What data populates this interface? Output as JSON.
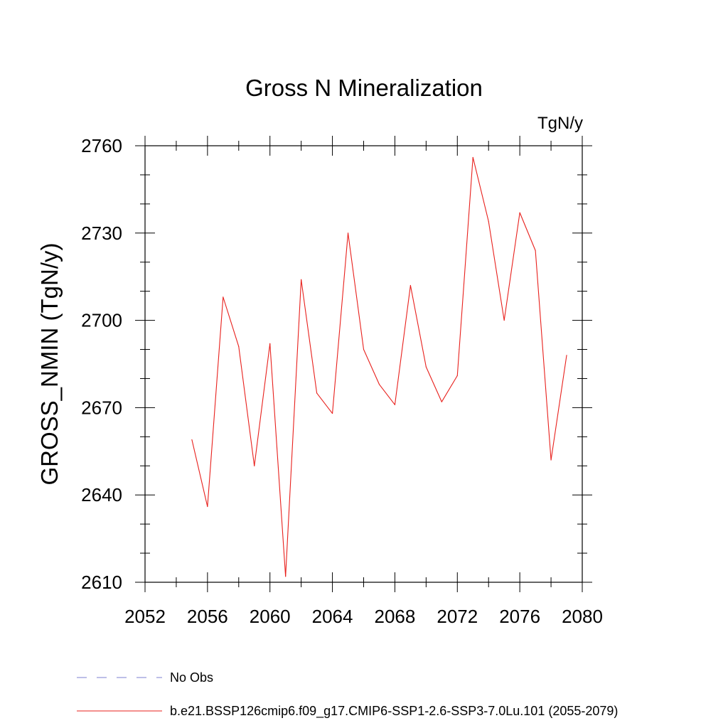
{
  "chart_data": {
    "type": "line",
    "title": "Gross N Mineralization",
    "units_label": "TgN/y",
    "xlabel": "",
    "ylabel": "GROSS_NMIN  (TgN/y)",
    "xlim": [
      2052,
      2080
    ],
    "ylim": [
      2610,
      2760
    ],
    "x_ticks": [
      2052,
      2056,
      2060,
      2064,
      2068,
      2072,
      2076,
      2080
    ],
    "y_ticks": [
      2610,
      2640,
      2670,
      2700,
      2730,
      2760
    ],
    "x_minor_step": 2,
    "y_minor_step": 10,
    "grid": false,
    "legend_position": "bottom-left",
    "series": [
      {
        "name": "b.e21.BSSP126cmip6.f09_g17.CMIP6-SSP1-2.6-SSP3-7.0Lu.101 (2055-2079)",
        "color": "#e8201c",
        "dash": "solid",
        "x": [
          2055,
          2056,
          2057,
          2058,
          2059,
          2060,
          2061,
          2062,
          2063,
          2064,
          2065,
          2066,
          2067,
          2068,
          2069,
          2070,
          2071,
          2072,
          2073,
          2074,
          2075,
          2076,
          2077,
          2078,
          2079
        ],
        "y": [
          2659,
          2636,
          2708,
          2691,
          2650,
          2692,
          2612,
          2714,
          2675,
          2668,
          2730,
          2690,
          2678,
          2671,
          2712,
          2684,
          2672,
          2681,
          2756,
          2734,
          2700,
          2737,
          2724,
          2652,
          2688
        ]
      }
    ],
    "legend": [
      {
        "label": "No Obs",
        "color": "#7b7fd0",
        "dash": "dashed"
      },
      {
        "label": "b.e21.BSSP126cmip6.f09_g17.CMIP6-SSP1-2.6-SSP3-7.0Lu.101 (2055-2079)",
        "color": "#e8201c",
        "dash": "solid"
      }
    ]
  }
}
